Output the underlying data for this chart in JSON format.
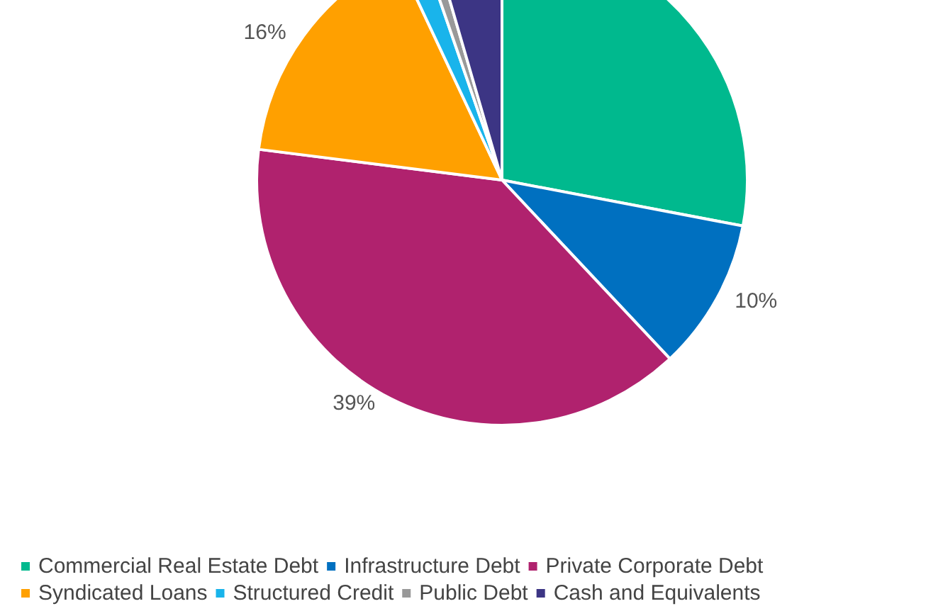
{
  "chart_data": {
    "type": "pie",
    "categories": [
      "Commercial Real Estate Debt",
      "Infrastructure Debt",
      "Private Corporate Debt",
      "Syndicated Loans",
      "Structured Credit",
      "Public Debt",
      "Cash and Equivalents"
    ],
    "values": [
      28,
      10,
      39,
      16,
      1.7,
      0.8,
      4.5
    ],
    "colors": [
      "#00b98e",
      "#0070c0",
      "#b0226e",
      "#ffa000",
      "#19b4eb",
      "#999999",
      "#3c3584"
    ],
    "value_labels": [
      null,
      "10%",
      "39%",
      "16%",
      null,
      null,
      null
    ],
    "legend": "bottom"
  }
}
